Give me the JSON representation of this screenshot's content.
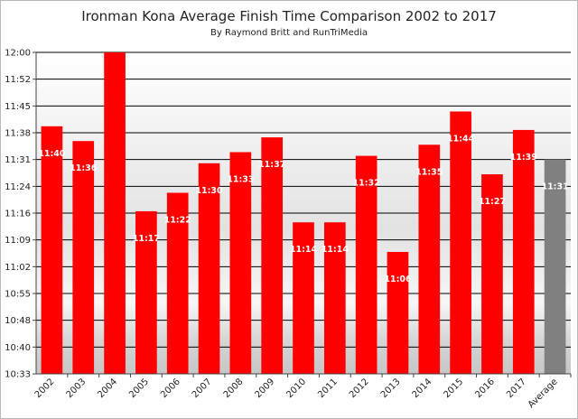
{
  "chart_data": {
    "type": "bar",
    "title": "Ironman Kona Average Finish Time Comparison 2002 to 2017",
    "subtitle": "By Raymond Britt and RunTriMedia",
    "xlabel": "",
    "ylabel": "",
    "categories": [
      "2002",
      "2003",
      "2004",
      "2005",
      "2006",
      "2007",
      "2008",
      "2009",
      "2010",
      "2011",
      "2012",
      "2013",
      "2014",
      "2015",
      "2016",
      "2017",
      "Average"
    ],
    "values_minutes": [
      700,
      696,
      720,
      677,
      682,
      690,
      693,
      697,
      674,
      674,
      692,
      666,
      695,
      704,
      687,
      699,
      691
    ],
    "data_labels": [
      "11:40",
      "11:36",
      "",
      "11:17",
      "11:22",
      "11:30",
      "11:33",
      "11:37",
      "11:14",
      "11:14",
      "11:32",
      "11:06",
      "11:35",
      "11:44",
      "11:27",
      "11:39",
      "11:31"
    ],
    "ylim_minutes": [
      633,
      720
    ],
    "yticks": [
      "12:00",
      "11:52",
      "11:45",
      "11:38",
      "11:31",
      "11:24",
      "11:16",
      "11:09",
      "11:02",
      "10:55",
      "10:48",
      "10:40",
      "10:33"
    ],
    "colors": {
      "bar": "#ff0000",
      "average_bar": "#808080",
      "grid": "#000000"
    },
    "grid": true,
    "legend": "none"
  }
}
